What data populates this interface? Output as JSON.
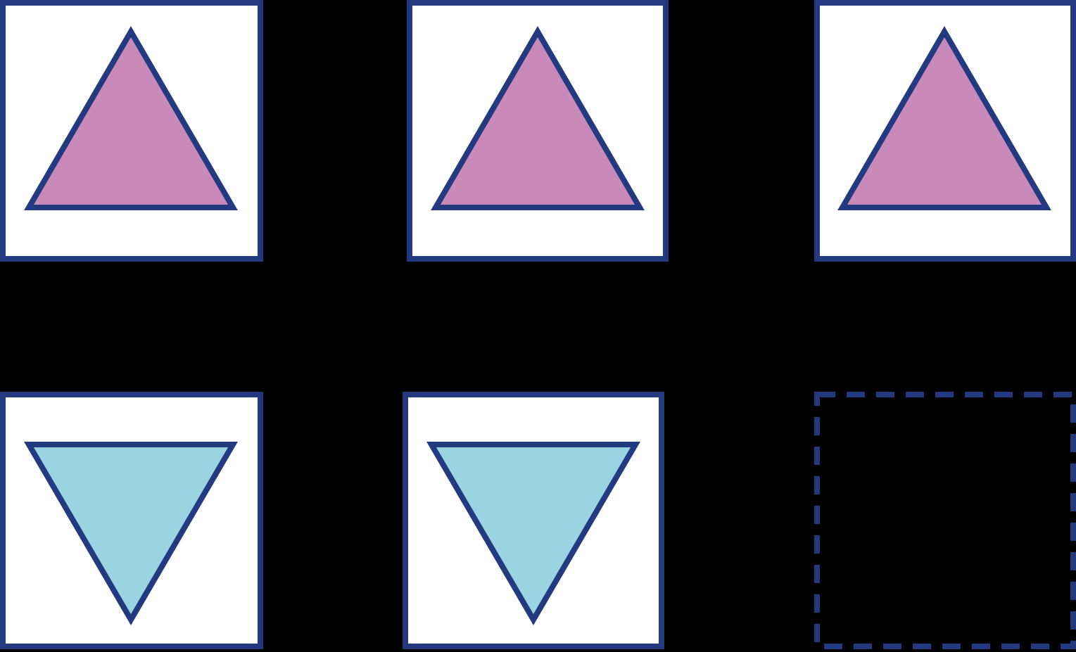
{
  "colors": {
    "background": "#000000",
    "frame_stroke": "#243a80",
    "card_fill": "#ffffff",
    "triangle_up_fill": "#c98aba",
    "triangle_down_fill": "#9bd4e1"
  },
  "grid": {
    "rows": [
      {
        "cells": [
          {
            "kind": "card",
            "shape": "triangle",
            "orientation": "up",
            "fill": "#c98aba"
          },
          {
            "kind": "card",
            "shape": "triangle",
            "orientation": "up",
            "fill": "#c98aba"
          },
          {
            "kind": "card",
            "shape": "triangle",
            "orientation": "up",
            "fill": "#c98aba"
          }
        ]
      },
      {
        "cells": [
          {
            "kind": "card",
            "shape": "triangle",
            "orientation": "down",
            "fill": "#9bd4e1"
          },
          {
            "kind": "card",
            "shape": "triangle",
            "orientation": "down",
            "fill": "#9bd4e1"
          },
          {
            "kind": "placeholder",
            "shape": "none",
            "border": "dashed"
          }
        ]
      }
    ]
  }
}
